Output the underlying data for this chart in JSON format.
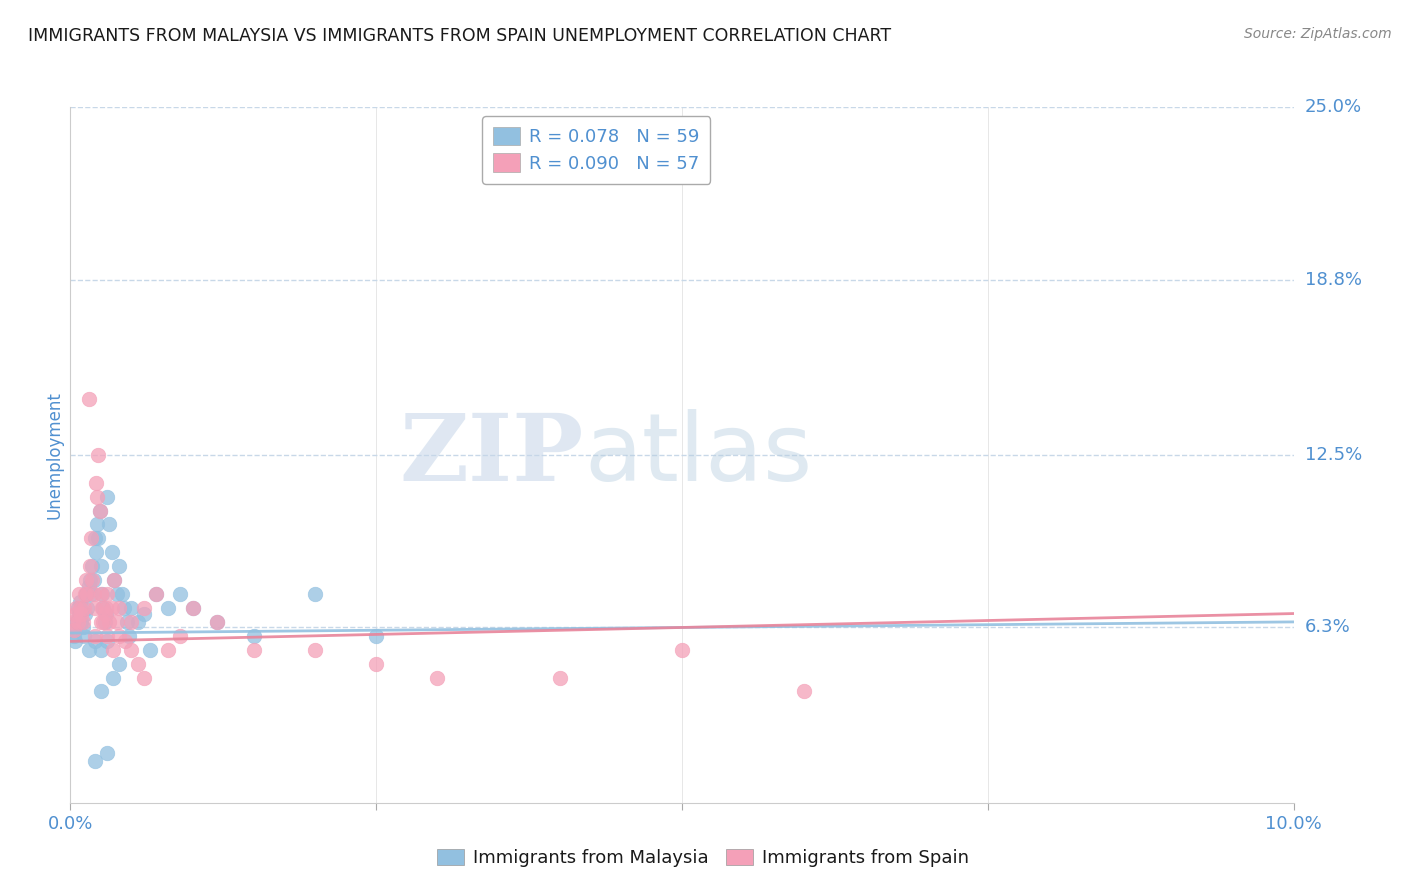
{
  "title": "IMMIGRANTS FROM MALAYSIA VS IMMIGRANTS FROM SPAIN UNEMPLOYMENT CORRELATION CHART",
  "source": "Source: ZipAtlas.com",
  "ylabel": "Unemployment",
  "xlim": [
    0.0,
    10.0
  ],
  "ylim": [
    0.0,
    25.0
  ],
  "ytick_values": [
    6.3,
    12.5,
    18.8,
    25.0
  ],
  "ytick_labels": [
    "6.3%",
    "12.5%",
    "18.8%",
    "25.0%"
  ],
  "xtick_values": [
    0.0,
    2.5,
    5.0,
    7.5,
    10.0
  ],
  "xtick_labels": [
    "0.0%",
    "",
    "",
    "",
    "10.0%"
  ],
  "watermark_zip": "ZIP",
  "watermark_atlas": "atlas",
  "legend_r1": "R = 0.078",
  "legend_n1": "N = 59",
  "legend_r2": "R = 0.090",
  "legend_n2": "N = 57",
  "malaysia_label": "Immigrants from Malaysia",
  "spain_label": "Immigrants from Spain",
  "malaysia_color": "#92c0e0",
  "spain_color": "#f4a0b8",
  "reg_malaysia_color": "#92c0e0",
  "reg_spain_color": "#e8849a",
  "background_color": "#ffffff",
  "grid_color": "#c8d8e8",
  "title_color": "#1a1a1a",
  "tick_label_color": "#5090d0",
  "ylabel_color": "#5090d0",
  "source_color": "#888888",
  "malaysia_x": [
    0.02,
    0.03,
    0.04,
    0.05,
    0.06,
    0.07,
    0.08,
    0.09,
    0.1,
    0.11,
    0.12,
    0.13,
    0.14,
    0.15,
    0.16,
    0.17,
    0.18,
    0.19,
    0.2,
    0.21,
    0.22,
    0.23,
    0.24,
    0.25,
    0.26,
    0.27,
    0.28,
    0.29,
    0.3,
    0.32,
    0.34,
    0.36,
    0.38,
    0.4,
    0.42,
    0.44,
    0.46,
    0.48,
    0.5,
    0.55,
    0.6,
    0.65,
    0.7,
    0.8,
    0.9,
    1.0,
    1.2,
    1.5,
    2.0,
    2.5,
    0.15,
    0.2,
    0.25,
    0.3,
    0.35,
    0.4,
    0.25,
    0.2,
    0.3
  ],
  "malaysia_y": [
    6.2,
    6.0,
    5.8,
    6.5,
    7.0,
    6.8,
    7.2,
    6.5,
    6.3,
    6.0,
    6.8,
    7.5,
    7.0,
    7.8,
    8.0,
    7.5,
    8.5,
    8.0,
    9.5,
    9.0,
    10.0,
    9.5,
    10.5,
    8.5,
    7.5,
    7.0,
    6.5,
    6.8,
    11.0,
    10.0,
    9.0,
    8.0,
    7.5,
    8.5,
    7.5,
    7.0,
    6.5,
    6.0,
    7.0,
    6.5,
    6.8,
    5.5,
    7.5,
    7.0,
    7.5,
    7.0,
    6.5,
    6.0,
    7.5,
    6.0,
    5.5,
    5.8,
    5.5,
    5.8,
    4.5,
    5.0,
    4.0,
    1.5,
    1.8
  ],
  "spain_x": [
    0.02,
    0.03,
    0.04,
    0.05,
    0.06,
    0.07,
    0.08,
    0.09,
    0.1,
    0.11,
    0.12,
    0.13,
    0.14,
    0.15,
    0.16,
    0.17,
    0.18,
    0.19,
    0.2,
    0.21,
    0.22,
    0.23,
    0.24,
    0.25,
    0.26,
    0.27,
    0.28,
    0.29,
    0.3,
    0.32,
    0.34,
    0.36,
    0.38,
    0.4,
    0.5,
    0.6,
    0.7,
    0.8,
    0.9,
    1.0,
    1.2,
    1.5,
    2.0,
    2.5,
    3.0,
    4.0,
    5.0,
    6.0,
    0.2,
    0.25,
    0.3,
    0.35,
    0.4,
    0.45,
    0.5,
    0.55,
    0.6
  ],
  "spain_y": [
    6.5,
    6.2,
    6.8,
    7.0,
    6.5,
    7.5,
    7.0,
    6.8,
    6.5,
    7.0,
    7.5,
    8.0,
    7.5,
    14.5,
    8.5,
    9.5,
    8.0,
    7.5,
    7.0,
    11.5,
    11.0,
    12.5,
    10.5,
    7.5,
    7.0,
    6.5,
    6.8,
    7.0,
    7.5,
    6.5,
    7.0,
    8.0,
    6.5,
    7.0,
    6.5,
    7.0,
    7.5,
    5.5,
    6.0,
    7.0,
    6.5,
    5.5,
    5.5,
    5.0,
    4.5,
    4.5,
    5.5,
    4.0,
    6.0,
    6.5,
    6.0,
    5.5,
    6.0,
    5.8,
    5.5,
    5.0,
    4.5
  ],
  "reg_my_x0": 0.0,
  "reg_my_x1": 10.0,
  "reg_my_y0": 6.1,
  "reg_my_y1": 6.5,
  "reg_sp_x0": 0.0,
  "reg_sp_x1": 10.0,
  "reg_sp_y0": 5.8,
  "reg_sp_y1": 6.8
}
